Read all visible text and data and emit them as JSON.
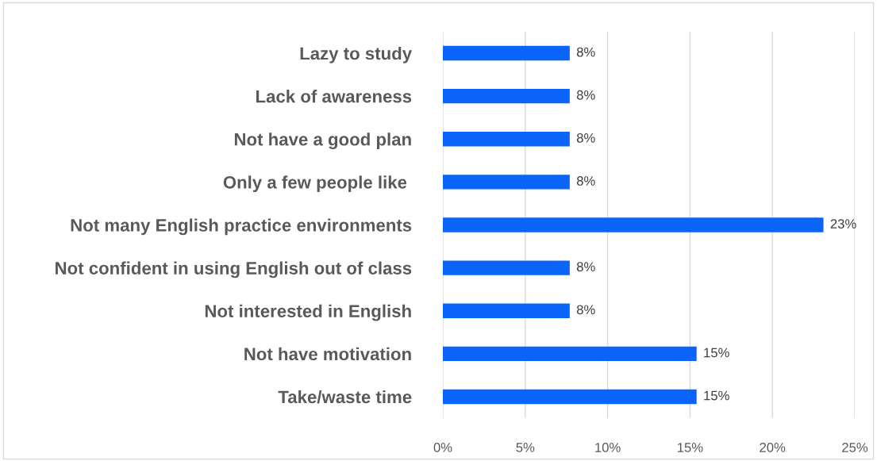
{
  "chart_data": {
    "type": "bar",
    "orientation": "horizontal",
    "categories": [
      "Lazy to study",
      "Lack of awareness",
      "Not have a good plan",
      "Only a few people like ",
      "Not many English practice environments",
      "Not confident in using English out of class",
      "Not interested in English",
      "Not have motivation",
      "Take/waste time"
    ],
    "values": [
      7.7,
      7.7,
      7.7,
      7.7,
      23.1,
      7.7,
      7.7,
      15.4,
      15.4
    ],
    "value_labels": [
      "8%",
      "8%",
      "8%",
      "8%",
      "23%",
      "8%",
      "8%",
      "15%",
      "15%"
    ],
    "color": "#0a64fa",
    "xlim": [
      0,
      25
    ],
    "xticks": [
      {
        "value": 0,
        "label": "0%"
      },
      {
        "value": 5,
        "label": "5%"
      },
      {
        "value": 10,
        "label": "10%"
      },
      {
        "value": 15,
        "label": "15%"
      },
      {
        "value": 20,
        "label": "20%"
      },
      {
        "value": 25,
        "label": "25%"
      }
    ],
    "grid": "x"
  }
}
